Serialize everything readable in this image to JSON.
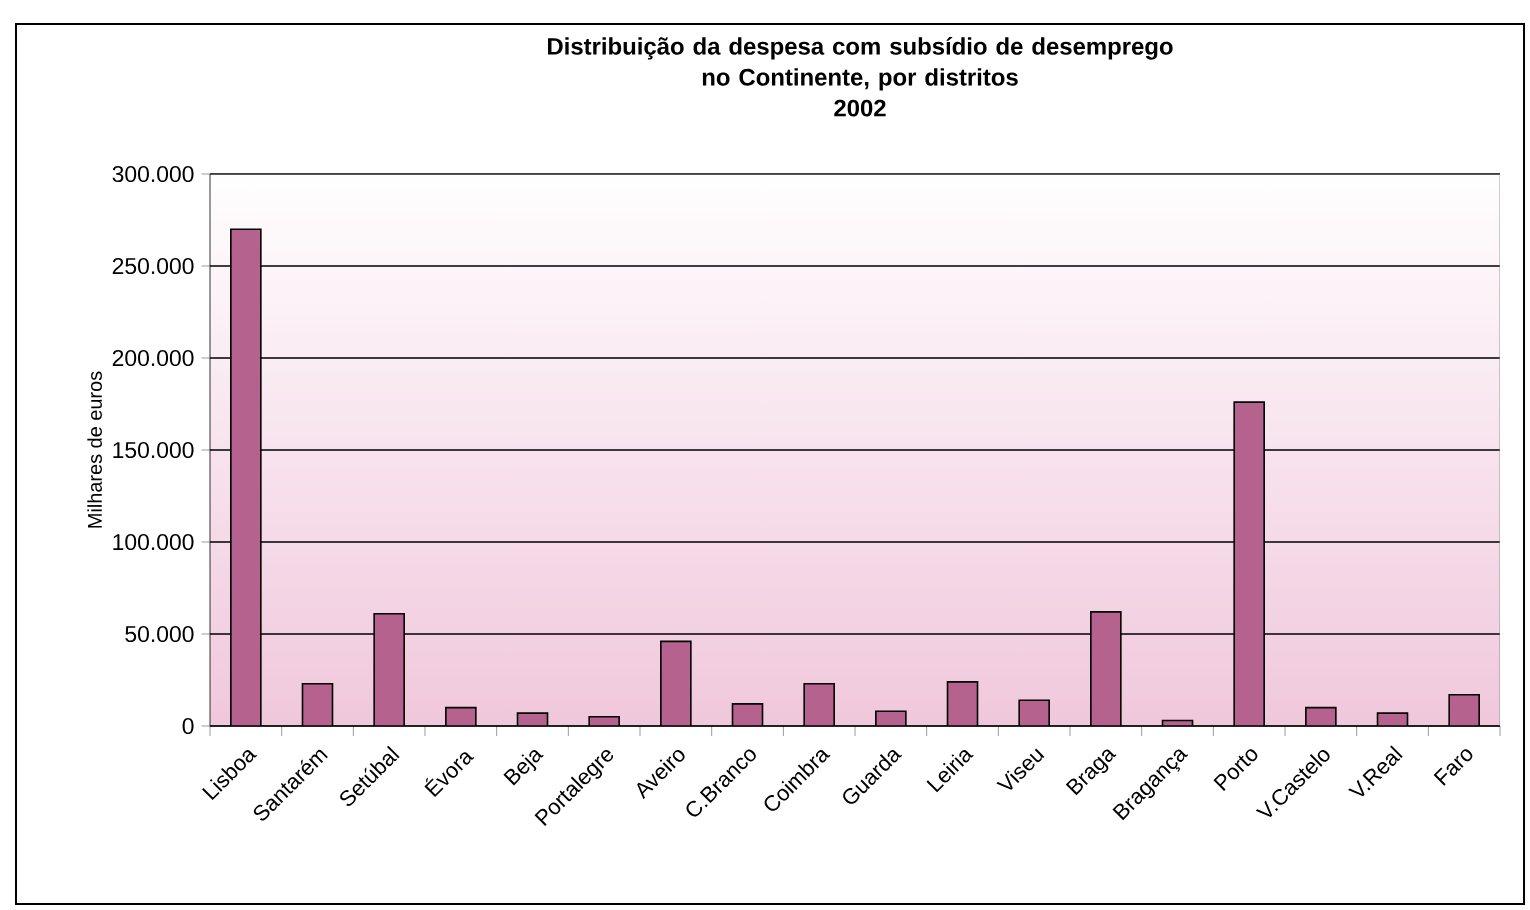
{
  "chart_data": {
    "type": "bar",
    "title": "Distribuição da despesa com subsídio de desemprego\nno Continente, por distritos\n2002",
    "ylabel": "Milhares de euros",
    "categories": [
      "Lisboa",
      "Santarém",
      "Setúbal",
      "Évora",
      "Beja",
      "Portalegre",
      "Aveiro",
      "C.Branco",
      "Coimbra",
      "Guarda",
      "Leiria",
      "Viseu",
      "Braga",
      "Bragança",
      "Porto",
      "V.Castelo",
      "V.Real",
      "Faro"
    ],
    "values": [
      270000,
      23000,
      61000,
      10000,
      7000,
      5000,
      46000,
      12000,
      23000,
      8000,
      24000,
      14000,
      62000,
      3000,
      176000,
      10000,
      7000,
      17000
    ],
    "color": "#b5628f",
    "ylim": [
      0,
      300000
    ],
    "yticks": [
      0,
      {
        "value": 50000,
        "label": "50.000"
      },
      {
        "value": 100000,
        "label": "100.000"
      },
      {
        "value": 150000,
        "label": "150.000"
      },
      {
        "value": 200000,
        "label": "200.000"
      },
      {
        "value": 250000,
        "label": "250.000"
      },
      {
        "value": 300000,
        "label": "300.000"
      }
    ],
    "grid": "y"
  }
}
